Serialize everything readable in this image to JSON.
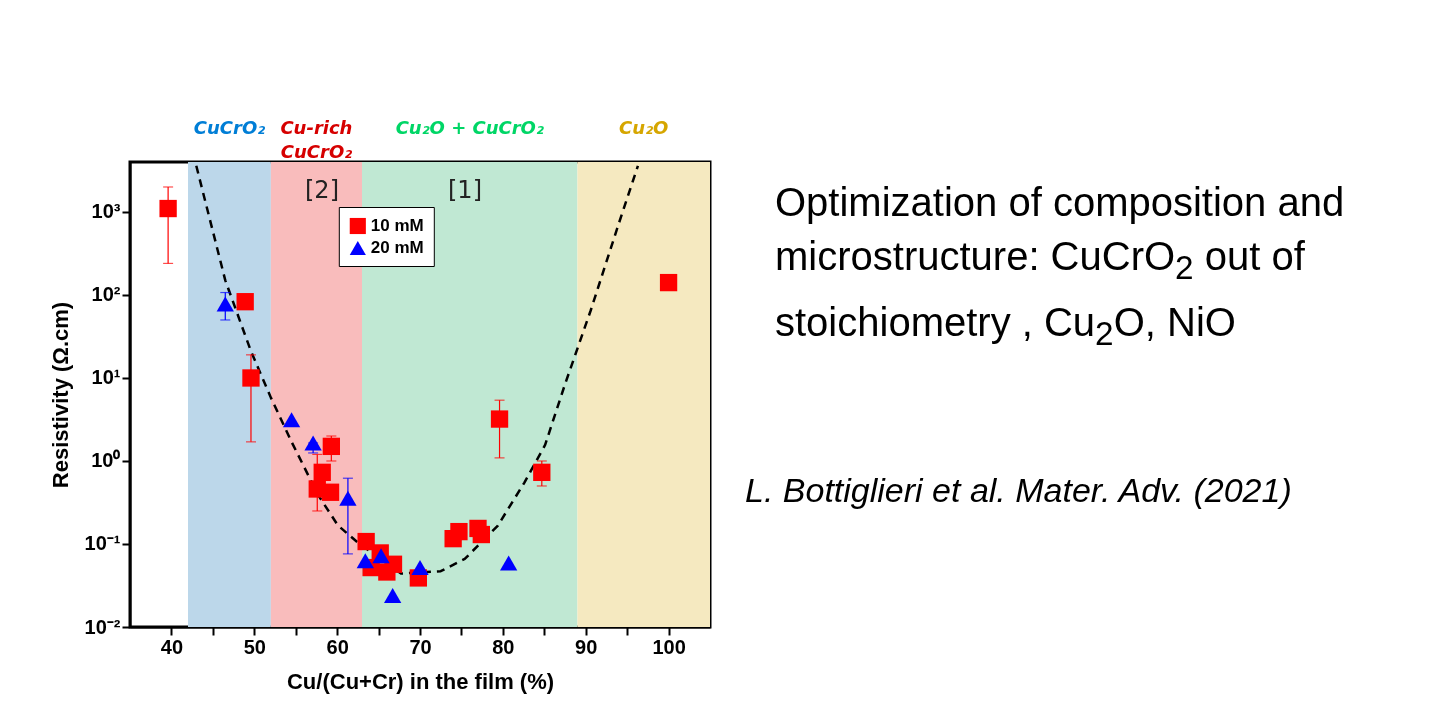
{
  "chart_data": {
    "type": "scatter",
    "xlabel": "Cu/(Cu+Cr) in the film (%)",
    "ylabel": "Resistivity (Ω.cm)",
    "log": "y",
    "grid": false,
    "legend": "top",
    "xlim": [
      35,
      105
    ],
    "xticks": [
      40,
      {
        "value": 45,
        "label": null
      },
      50,
      {
        "value": 55,
        "label": null
      },
      60,
      {
        "value": 65,
        "label": null
      },
      70,
      {
        "value": 75,
        "label": null
      },
      80,
      {
        "value": 85,
        "label": null
      },
      90,
      {
        "value": 95,
        "label": null
      },
      100
    ],
    "ylim": [
      0.01,
      4000
    ],
    "yticks": [
      {
        "value": 0.01,
        "label": "10⁻²"
      },
      {
        "value": 0.1,
        "label": "10⁻¹"
      },
      {
        "value": 1,
        "label": "10⁰"
      },
      {
        "value": 10,
        "label": "10¹"
      },
      {
        "value": 100,
        "label": "10²"
      },
      {
        "value": 1000,
        "label": "10³"
      }
    ],
    "series": [
      {
        "name": "10 mM",
        "marker": "square",
        "color": "#ff0000",
        "x": [
          39.6,
          48.9,
          49.6,
          59.3,
          58.2,
          57.6,
          59.2,
          63.5,
          65.2,
          64.1,
          66.0,
          66.8,
          69.8,
          74.0,
          74.7,
          77.0,
          77.4,
          79.6,
          84.7,
          100
        ],
        "values": [
          1100,
          83,
          10,
          1.5,
          0.73,
          0.46,
          0.42,
          0.107,
          0.078,
          0.052,
          0.046,
          0.057,
          0.039,
          0.116,
          0.141,
          0.154,
          0.13,
          3.2,
          0.73,
          141
        ],
        "errors": [
          [
            240,
            2000
          ],
          null,
          [
            1.7,
            19
          ],
          [
            1.0,
            2.0
          ],
          null,
          [
            0.25,
            1.2
          ],
          null,
          null,
          null,
          null,
          null,
          null,
          null,
          null,
          null,
          null,
          null,
          [
            1.09,
            5.4
          ],
          [
            0.5,
            1.0
          ],
          null
        ]
      },
      {
        "name": "20 mM",
        "marker": "triangle",
        "color": "#0000ff",
        "x": [
          46.5,
          54.5,
          57.1,
          61.3,
          63.4,
          65.3,
          66.7,
          70.0,
          80.7
        ],
        "values": [
          78,
          3.15,
          1.65,
          0.355,
          0.063,
          0.072,
          0.024,
          0.052,
          0.059
        ],
        "errors": [
          [
            50,
            107
          ],
          null,
          [
            1.25,
            1.65
          ],
          [
            0.076,
            0.62
          ],
          null,
          null,
          null,
          null,
          null
        ]
      },
      {
        "type": "line",
        "marker": "none",
        "line_style": "dashed",
        "color": "#000000",
        "x": [
          43.0,
          46.5,
          49.6,
          52.0,
          54.5,
          57.7,
          60.1,
          62.5,
          67.7,
          72.5,
          75.4,
          79.4,
          82.6,
          85.1,
          87.5,
          90.6,
          93.9,
          96.3
        ],
        "values": [
          3600,
          150,
          21,
          5.8,
          1.7,
          0.39,
          0.167,
          0.104,
          0.044,
          0.047,
          0.066,
          0.167,
          0.55,
          1.56,
          8.4,
          65,
          680,
          3600
        ]
      }
    ],
    "bands": [
      {
        "axis": "x",
        "from": 42,
        "to": 52,
        "label": "CuCrO₂",
        "color": "#bcd7ea"
      },
      {
        "axis": "x",
        "from": 52,
        "to": 63,
        "label": "Cu-rich\nCuCrO₂",
        "color": "#f9bcbc"
      },
      {
        "axis": "x",
        "from": 63,
        "to": 89,
        "label": "Cu₂O + CuCrO₂",
        "color": "#c0e8d3"
      },
      {
        "axis": "x",
        "from": 89,
        "to": 105,
        "label": "Cu₂O",
        "color": "#f5e9c0"
      }
    ],
    "annotations": [
      "[2]",
      "[1]",
      "Optimization of composition and microstructure: CuCrO$_{2}$ out of stoichiometry , Cu$_{2}$O, NiO",
      "L. Bottiglieri et al. Mater. Adv. (2021)"
    ]
  }
}
